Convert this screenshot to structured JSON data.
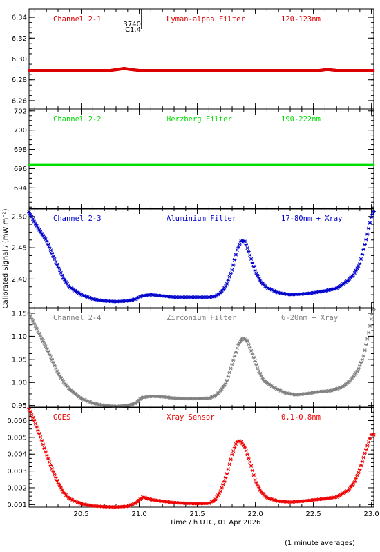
{
  "chart_data": {
    "type": "scatter",
    "xlabel": "Time / h UTC, 01 Apr 2026",
    "ylabel": "Calibrated Signal / (mW m⁻²)",
    "xlim": [
      20.05,
      23.02
    ],
    "xticks": [
      "20.5",
      "21.0",
      "21.5",
      "22.0",
      "22.5",
      "23.0"
    ],
    "xtick_values": [
      20.5,
      21.0,
      21.5,
      22.0,
      22.5,
      23.0
    ],
    "footnote": "(1 minute averages)",
    "flare_marker": {
      "x": 21.02,
      "label_top": "3740",
      "label_bottom": "C1.4"
    },
    "panels": [
      {
        "name": "Channel 2-1",
        "filter": "Lyman-alpha Filter",
        "band": "120-123nm",
        "color": "#dd0000",
        "ylim": [
          6.252,
          6.348
        ],
        "yticks": [
          "6.26",
          "6.28",
          "6.30",
          "6.32",
          "6.34"
        ],
        "ytick_values": [
          6.26,
          6.28,
          6.3,
          6.32,
          6.34
        ],
        "series": [
          [
            20.05,
            6.289
          ],
          [
            20.6,
            6.289
          ],
          [
            20.75,
            6.289
          ],
          [
            20.82,
            6.29
          ],
          [
            20.87,
            6.291
          ],
          [
            20.92,
            6.29
          ],
          [
            21.0,
            6.289
          ],
          [
            21.5,
            6.289
          ],
          [
            22.0,
            6.289
          ],
          [
            22.55,
            6.289
          ],
          [
            22.62,
            6.29
          ],
          [
            22.7,
            6.289
          ],
          [
            23.02,
            6.289
          ]
        ]
      },
      {
        "name": "Channel 2-2",
        "filter": "Herzberg Filter",
        "band": "190-222nm",
        "color": "#00dd00",
        "ylim": [
          691.8,
          702.2
        ],
        "yticks": [
          "694",
          "696",
          "698",
          "700",
          "702"
        ],
        "ytick_values": [
          694,
          696,
          698,
          700,
          702
        ],
        "series": [
          [
            20.05,
            696.4
          ],
          [
            20.5,
            696.4
          ],
          [
            21.0,
            696.4
          ],
          [
            21.5,
            696.4
          ],
          [
            22.0,
            696.4
          ],
          [
            22.5,
            696.4
          ],
          [
            23.02,
            696.4
          ]
        ]
      },
      {
        "name": "Channel 2-3",
        "filter": "Aluminium Filter",
        "band": "17-80nm + Xray",
        "color": "#0000cc",
        "ylim": [
          2.353,
          2.513
        ],
        "yticks": [
          "2.40",
          "2.45",
          "2.50"
        ],
        "ytick_values": [
          2.4,
          2.45,
          2.5
        ],
        "series": [
          [
            20.05,
            2.507
          ],
          [
            20.1,
            2.49
          ],
          [
            20.15,
            2.475
          ],
          [
            20.2,
            2.462
          ],
          [
            20.25,
            2.44
          ],
          [
            20.3,
            2.42
          ],
          [
            20.35,
            2.4
          ],
          [
            20.4,
            2.387
          ],
          [
            20.5,
            2.375
          ],
          [
            20.6,
            2.368
          ],
          [
            20.7,
            2.365
          ],
          [
            20.8,
            2.364
          ],
          [
            20.9,
            2.365
          ],
          [
            20.97,
            2.368
          ],
          [
            21.02,
            2.373
          ],
          [
            21.1,
            2.375
          ],
          [
            21.2,
            2.373
          ],
          [
            21.3,
            2.371
          ],
          [
            21.4,
            2.371
          ],
          [
            21.5,
            2.371
          ],
          [
            21.6,
            2.371
          ],
          [
            21.65,
            2.372
          ],
          [
            21.7,
            2.378
          ],
          [
            21.75,
            2.39
          ],
          [
            21.8,
            2.415
          ],
          [
            21.84,
            2.445
          ],
          [
            21.88,
            2.462
          ],
          [
            21.91,
            2.46
          ],
          [
            21.95,
            2.44
          ],
          [
            22.0,
            2.412
          ],
          [
            22.05,
            2.395
          ],
          [
            22.1,
            2.386
          ],
          [
            22.2,
            2.378
          ],
          [
            22.3,
            2.375
          ],
          [
            22.4,
            2.376
          ],
          [
            22.5,
            2.378
          ],
          [
            22.6,
            2.381
          ],
          [
            22.7,
            2.385
          ],
          [
            22.8,
            2.398
          ],
          [
            22.85,
            2.408
          ],
          [
            22.9,
            2.425
          ],
          [
            22.95,
            2.46
          ],
          [
            23.0,
            2.5
          ],
          [
            23.02,
            2.508
          ]
        ]
      },
      {
        "name": "Channel 2-4",
        "filter": "Zirconium Filter",
        "band": "6-20nm + Xray",
        "color": "#808080",
        "ylim": [
          0.945,
          1.162
        ],
        "yticks": [
          "0.95",
          "1.00",
          "1.05",
          "1.10",
          "1.15"
        ],
        "ytick_values": [
          0.95,
          1.0,
          1.05,
          1.1,
          1.15
        ],
        "series": [
          [
            20.05,
            1.15
          ],
          [
            20.1,
            1.125
          ],
          [
            20.15,
            1.1
          ],
          [
            20.2,
            1.075
          ],
          [
            20.25,
            1.048
          ],
          [
            20.3,
            1.02
          ],
          [
            20.35,
            1.0
          ],
          [
            20.4,
            0.985
          ],
          [
            20.5,
            0.965
          ],
          [
            20.6,
            0.955
          ],
          [
            20.7,
            0.95
          ],
          [
            20.8,
            0.948
          ],
          [
            20.9,
            0.95
          ],
          [
            20.97,
            0.955
          ],
          [
            21.02,
            0.967
          ],
          [
            21.1,
            0.97
          ],
          [
            21.2,
            0.969
          ],
          [
            21.3,
            0.966
          ],
          [
            21.4,
            0.965
          ],
          [
            21.5,
            0.965
          ],
          [
            21.6,
            0.966
          ],
          [
            21.65,
            0.97
          ],
          [
            21.7,
            0.982
          ],
          [
            21.75,
            1.0
          ],
          [
            21.8,
            1.04
          ],
          [
            21.85,
            1.08
          ],
          [
            21.89,
            1.097
          ],
          [
            21.93,
            1.09
          ],
          [
            21.97,
            1.065
          ],
          [
            22.02,
            1.03
          ],
          [
            22.07,
            1.005
          ],
          [
            22.15,
            0.99
          ],
          [
            22.25,
            0.978
          ],
          [
            22.35,
            0.973
          ],
          [
            22.45,
            0.976
          ],
          [
            22.55,
            0.98
          ],
          [
            22.65,
            0.982
          ],
          [
            22.75,
            0.99
          ],
          [
            22.82,
            1.005
          ],
          [
            22.88,
            1.025
          ],
          [
            22.93,
            1.055
          ],
          [
            22.97,
            1.1
          ],
          [
            23.0,
            1.14
          ],
          [
            23.02,
            1.158
          ]
        ]
      },
      {
        "name": "GOES",
        "filter": "Xray Sensor",
        "band": "0.1-0.8nm",
        "color": "#ee0000",
        "ylim": [
          0.00085,
          0.0068
        ],
        "yticks": [
          "0.001",
          "0.002",
          "0.003",
          "0.004",
          "0.005",
          "0.006"
        ],
        "ytick_values": [
          0.001,
          0.002,
          0.003,
          0.004,
          0.005,
          0.006
        ],
        "series": [
          [
            20.05,
            0.0067
          ],
          [
            20.1,
            0.0059
          ],
          [
            20.15,
            0.005
          ],
          [
            20.2,
            0.004
          ],
          [
            20.25,
            0.0031
          ],
          [
            20.3,
            0.0023
          ],
          [
            20.35,
            0.0017
          ],
          [
            20.4,
            0.00135
          ],
          [
            20.5,
            0.00105
          ],
          [
            20.6,
            0.00092
          ],
          [
            20.7,
            0.00088
          ],
          [
            20.8,
            0.00086
          ],
          [
            20.9,
            0.0009
          ],
          [
            20.97,
            0.0011
          ],
          [
            21.03,
            0.00145
          ],
          [
            21.1,
            0.0013
          ],
          [
            21.2,
            0.0012
          ],
          [
            21.3,
            0.00112
          ],
          [
            21.4,
            0.00108
          ],
          [
            21.5,
            0.00106
          ],
          [
            21.6,
            0.00108
          ],
          [
            21.65,
            0.00125
          ],
          [
            21.7,
            0.0018
          ],
          [
            21.75,
            0.0027
          ],
          [
            21.8,
            0.004
          ],
          [
            21.84,
            0.00475
          ],
          [
            21.87,
            0.0048
          ],
          [
            21.91,
            0.0044
          ],
          [
            21.96,
            0.0034
          ],
          [
            22.0,
            0.0024
          ],
          [
            22.05,
            0.00175
          ],
          [
            22.1,
            0.0014
          ],
          [
            22.2,
            0.0012
          ],
          [
            22.3,
            0.00115
          ],
          [
            22.4,
            0.0012
          ],
          [
            22.5,
            0.00128
          ],
          [
            22.6,
            0.00135
          ],
          [
            22.7,
            0.00145
          ],
          [
            22.8,
            0.00185
          ],
          [
            22.85,
            0.0023
          ],
          [
            22.9,
            0.0031
          ],
          [
            22.95,
            0.0042
          ],
          [
            23.0,
            0.0052
          ],
          [
            23.02,
            0.00515
          ]
        ]
      }
    ]
  }
}
